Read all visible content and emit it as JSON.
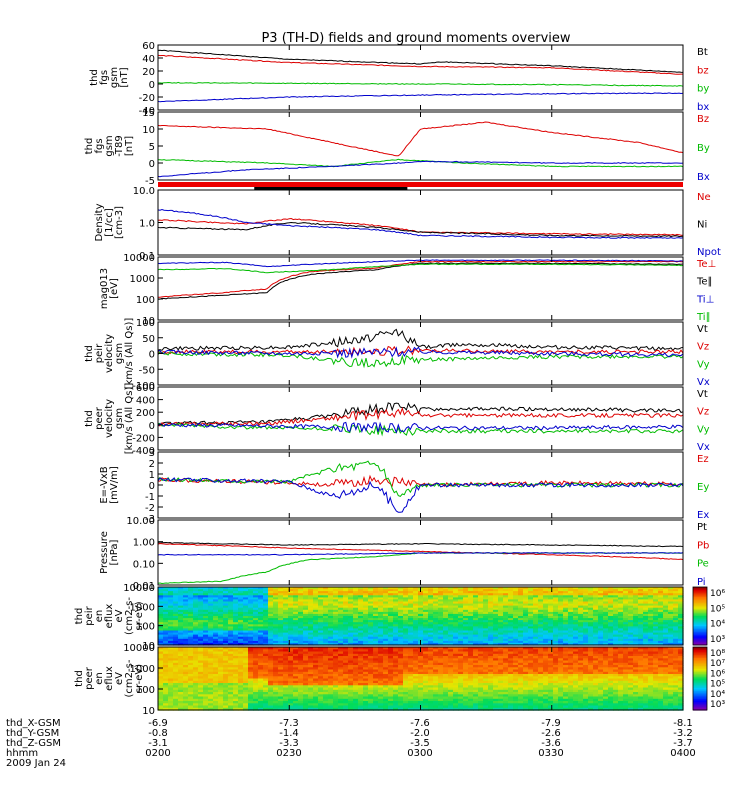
{
  "figure": {
    "title": "P3 (TH-D) fields and ground moments overview",
    "date_label": "2009 Jan 24",
    "time_range": [
      "0200",
      "0400"
    ],
    "orbit_labels": [
      "thd_X-GSM",
      "thd_Y-GSM",
      "thd_Z-GSM",
      "hhmm"
    ],
    "orbit_values": [
      [
        "-6.9",
        "-7.3",
        "-7.6",
        "-7.9",
        "-8.1"
      ],
      [
        "-0.8",
        "-1.4",
        "-2.0",
        "-2.6",
        "-3.2"
      ],
      [
        "-3.1",
        "-3.3",
        "-3.5",
        "-3.6",
        "-3.7"
      ],
      [
        "0200",
        "0230",
        "0300",
        "0330",
        "0400"
      ]
    ]
  },
  "chart_data": [
    {
      "type": "line",
      "ylabel": [
        "thd",
        "fgs",
        "gsm",
        "[nT]"
      ],
      "ylim": [
        -40,
        60
      ],
      "yticks": [
        "60",
        "40",
        "20",
        "0",
        "-20",
        "-40"
      ],
      "series": [
        {
          "name": "Bt",
          "color": "#000000",
          "x": [
            0,
            30,
            60,
            65,
            90,
            120
          ],
          "y": [
            52,
            38,
            31,
            34,
            28,
            18
          ]
        },
        {
          "name": "bz",
          "color": "#dd0000",
          "x": [
            0,
            30,
            60,
            90,
            120
          ],
          "y": [
            44,
            33,
            27,
            25,
            15
          ]
        },
        {
          "name": "by",
          "color": "#00bb00",
          "x": [
            0,
            30,
            60,
            90,
            120
          ],
          "y": [
            2,
            1,
            0,
            -1,
            -3
          ]
        },
        {
          "name": "bx",
          "color": "#0000cc",
          "x": [
            0,
            30,
            60,
            90,
            120
          ],
          "y": [
            -27,
            -20,
            -17,
            -15,
            -14
          ]
        }
      ]
    },
    {
      "type": "line",
      "ylabel": [
        "thd",
        "fgs",
        "gsm",
        "-T89",
        "[nT]"
      ],
      "ylim": [
        -5,
        15
      ],
      "yticks": [
        "15",
        "10",
        "5",
        "0",
        "-5"
      ],
      "series": [
        {
          "name": "Bz",
          "color": "#dd0000",
          "x": [
            0,
            25,
            40,
            55,
            60,
            75,
            90,
            110,
            120
          ],
          "y": [
            11,
            10,
            6,
            2,
            10,
            12,
            9,
            6,
            3
          ]
        },
        {
          "name": "By",
          "color": "#00bb00",
          "x": [
            0,
            25,
            40,
            55,
            70,
            90,
            120
          ],
          "y": [
            1,
            0,
            -1,
            1,
            0,
            -1,
            -1
          ]
        },
        {
          "name": "Bx",
          "color": "#0000cc",
          "x": [
            0,
            20,
            40,
            55,
            60,
            90,
            120
          ],
          "y": [
            -4,
            -2,
            -1,
            0,
            0.5,
            0,
            0
          ]
        }
      ]
    },
    {
      "type": "line",
      "ylabel": [
        "Density",
        "[1/cc]",
        "[cm-3]"
      ],
      "ylim": [
        0.1,
        10
      ],
      "log": true,
      "yticks": [
        "10.0",
        "1.0",
        "0.1"
      ],
      "series": [
        {
          "name": "Ne",
          "color": "#dd0000",
          "x": [
            0,
            20,
            30,
            50,
            60,
            90,
            120
          ],
          "y": [
            1.2,
            0.9,
            1.3,
            0.8,
            0.5,
            0.45,
            0.42
          ]
        },
        {
          "name": "Ni",
          "color": "#000000",
          "x": [
            0,
            20,
            30,
            50,
            60,
            90,
            120
          ],
          "y": [
            0.7,
            0.6,
            1.0,
            0.7,
            0.5,
            0.4,
            0.38
          ]
        },
        {
          "name": "Npot",
          "color": "#0000cc",
          "x": [
            0,
            10,
            20,
            30,
            50,
            60,
            90,
            120
          ],
          "y": [
            2.5,
            1.8,
            1.0,
            0.8,
            0.6,
            0.4,
            0.35,
            0.33
          ]
        }
      ]
    },
    {
      "type": "line",
      "ylabel": [
        "mag013",
        "[eV]"
      ],
      "ylim": [
        10,
        10000
      ],
      "log": true,
      "yticks": [
        "10000",
        "1000",
        "100",
        "10"
      ],
      "series": [
        {
          "name": "Te⊥",
          "color": "#dd0000",
          "x": [
            0,
            15,
            25,
            35,
            50,
            60,
            90,
            120
          ],
          "y": [
            120,
            200,
            300,
            2000,
            3000,
            6000,
            6000,
            6000
          ]
        },
        {
          "name": "Te∥",
          "color": "#000000",
          "x": [
            0,
            15,
            25,
            35,
            50,
            60,
            90,
            120
          ],
          "y": [
            100,
            150,
            200,
            1500,
            2500,
            5000,
            5000,
            4500
          ]
        },
        {
          "name": "Ti⊥",
          "color": "#0000cc",
          "x": [
            0,
            15,
            25,
            40,
            60,
            90,
            120
          ],
          "y": [
            5000,
            5500,
            3500,
            5000,
            7000,
            7000,
            6500
          ]
        },
        {
          "name": "Ti∥",
          "color": "#00bb00",
          "x": [
            0,
            15,
            25,
            40,
            60,
            90,
            120
          ],
          "y": [
            2500,
            2800,
            1800,
            2500,
            4500,
            4500,
            4000
          ]
        }
      ]
    },
    {
      "type": "line",
      "ylabel": [
        "thd",
        "peir",
        "velocity",
        "gsm",
        "[km/s (All Qs)]"
      ],
      "ylim": [
        -100,
        100
      ],
      "yticks": [
        "100",
        "50",
        "0",
        "-50",
        "-100"
      ],
      "series": [
        {
          "name": "Vt",
          "color": "#000000",
          "x": [
            0,
            30,
            45,
            55,
            60,
            70,
            90,
            120
          ],
          "y": [
            15,
            20,
            40,
            70,
            20,
            30,
            20,
            15
          ]
        },
        {
          "name": "Vz",
          "color": "#dd0000",
          "x": [
            0,
            30,
            60,
            90,
            120
          ],
          "y": [
            5,
            5,
            10,
            5,
            5
          ]
        },
        {
          "name": "Vy",
          "color": "#00bb00",
          "x": [
            0,
            30,
            45,
            60,
            90,
            120
          ],
          "y": [
            0,
            -5,
            -30,
            -20,
            -10,
            -10
          ]
        },
        {
          "name": "Vx",
          "color": "#0000cc",
          "x": [
            0,
            30,
            60,
            90,
            120
          ],
          "y": [
            5,
            0,
            5,
            0,
            -5
          ]
        }
      ]
    },
    {
      "type": "line",
      "ylabel": [
        "thd",
        "peer",
        "velocity",
        "gsm",
        "[km/s (All Qs)]"
      ],
      "ylim": [
        -400,
        600
      ],
      "yticks": [
        "600",
        "400",
        "200",
        "0",
        "-200",
        "-400"
      ],
      "series": [
        {
          "name": "Vt",
          "color": "#000000",
          "x": [
            0,
            25,
            40,
            55,
            60,
            90,
            120
          ],
          "y": [
            20,
            40,
            150,
            300,
            250,
            250,
            220
          ]
        },
        {
          "name": "Vz",
          "color": "#dd0000",
          "x": [
            0,
            25,
            55,
            60,
            90,
            120
          ],
          "y": [
            10,
            20,
            200,
            150,
            150,
            150
          ]
        },
        {
          "name": "Vy",
          "color": "#00bb00",
          "x": [
            0,
            25,
            60,
            90,
            120
          ],
          "y": [
            0,
            -50,
            -100,
            -100,
            -100
          ]
        },
        {
          "name": "Vx",
          "color": "#0000cc",
          "x": [
            0,
            25,
            60,
            90,
            120
          ],
          "y": [
            0,
            -20,
            -50,
            -50,
            -30
          ]
        }
      ]
    },
    {
      "type": "line",
      "ylabel": [
        "E=-VxB",
        "[mV/m]"
      ],
      "ylim": [
        -3,
        3
      ],
      "yticks": [
        "3",
        "2",
        "1",
        "0",
        "-1",
        "-2",
        "-3"
      ],
      "series": [
        {
          "name": "Ez",
          "color": "#dd0000",
          "x": [
            0,
            30,
            40,
            50,
            60,
            90,
            120
          ],
          "y": [
            0.5,
            0.2,
            0,
            0.5,
            0,
            0.2,
            0.1
          ]
        },
        {
          "name": "Ey",
          "color": "#00bb00",
          "x": [
            0,
            30,
            40,
            50,
            55,
            60,
            90,
            120
          ],
          "y": [
            0.5,
            0.3,
            1.5,
            2,
            -1,
            0,
            0,
            0
          ]
        },
        {
          "name": "Ex",
          "color": "#0000cc",
          "x": [
            0,
            30,
            40,
            50,
            55,
            60,
            90,
            120
          ],
          "y": [
            0.5,
            0.3,
            -1,
            0,
            -2.5,
            0,
            0,
            0
          ]
        }
      ]
    },
    {
      "type": "line",
      "ylabel": [
        "Pressure",
        "[nPa]"
      ],
      "ylim": [
        0.01,
        10
      ],
      "log": true,
      "yticks": [
        "10.00",
        "1.00",
        "0.10",
        "0.01"
      ],
      "series": [
        {
          "name": "Pt",
          "color": "#000000",
          "x": [
            0,
            30,
            60,
            90,
            120
          ],
          "y": [
            0.9,
            0.7,
            0.8,
            0.7,
            0.6
          ]
        },
        {
          "name": "Pb",
          "color": "#dd0000",
          "x": [
            0,
            30,
            60,
            90,
            120
          ],
          "y": [
            0.8,
            0.5,
            0.35,
            0.25,
            0.15
          ]
        },
        {
          "name": "Pe",
          "color": "#00bb00",
          "x": [
            0,
            15,
            25,
            35,
            50,
            60,
            90,
            120
          ],
          "y": [
            0.012,
            0.015,
            0.04,
            0.15,
            0.2,
            0.3,
            0.3,
            0.3
          ]
        },
        {
          "name": "Pi",
          "color": "#0000cc",
          "x": [
            0,
            15,
            30,
            60,
            90,
            120
          ],
          "y": [
            0.25,
            0.25,
            0.25,
            0.3,
            0.3,
            0.3
          ]
        }
      ]
    },
    {
      "type": "heatmap",
      "ylabel": [
        "thd",
        "peir",
        "en",
        "eflux",
        "eV",
        "(cm2-s-",
        "sr-eV)"
      ],
      "ylim": [
        10,
        10000
      ],
      "log": true,
      "yticks": [
        "10000",
        "1000",
        "100",
        "10"
      ],
      "colorbar": {
        "ticks": [
          "10⁶",
          "10⁵",
          "10⁴",
          "10³"
        ],
        "range_exp": [
          2.5,
          6.5
        ]
      }
    },
    {
      "type": "heatmap",
      "ylabel": [
        "thd",
        "peer",
        "en",
        "eflux",
        "eV",
        "(cm2-s-",
        "sr-eV)"
      ],
      "ylim": [
        10,
        10000
      ],
      "log": true,
      "yticks": [
        "10000",
        "1000",
        "100",
        "10"
      ],
      "colorbar": {
        "ticks": [
          "10⁸",
          "10⁷",
          "10⁶",
          "10⁵",
          "10⁴",
          "10³"
        ],
        "range_exp": [
          2.5,
          8.5
        ]
      }
    }
  ]
}
